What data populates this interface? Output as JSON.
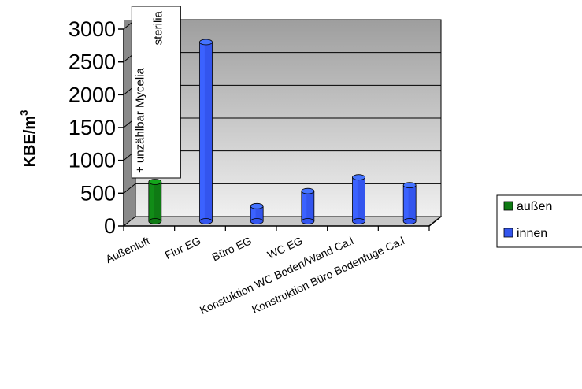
{
  "chart_data": {
    "type": "bar",
    "ylabel": "KBE/m",
    "ylabel_sup": "3",
    "ylim": [
      0,
      3000
    ],
    "yticks": [
      0,
      500,
      1000,
      1500,
      2000,
      2500,
      3000
    ],
    "grid": true,
    "legend_position": "right",
    "categories": [
      "Außenluft",
      "Flur EG",
      "Büro EG",
      "WC EG",
      "Konstuktion WC Boden/Wand Ca.l",
      "Konstruktion Büro Bodenfuge Ca.l"
    ],
    "series": [
      {
        "name": "außen",
        "color": "#0f7a14",
        "values": [
          600,
          null,
          null,
          null,
          null,
          null
        ]
      },
      {
        "name": "innen",
        "color": "#3355ee",
        "values": [
          null,
          2730,
          230,
          460,
          670,
          550
        ]
      }
    ],
    "annotation": {
      "lines": [
        "+ unzählbar Mycelia",
        "sterilia"
      ],
      "category_index": 0
    }
  }
}
